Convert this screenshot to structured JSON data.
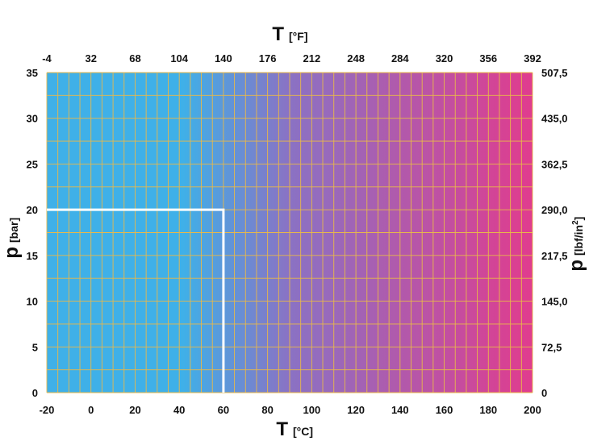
{
  "chart_data": {
    "type": "area",
    "x_bottom": {
      "symbol": "T",
      "unit": "[°C]",
      "range": [
        -20,
        200
      ],
      "ticks": [
        -20,
        0,
        20,
        40,
        60,
        80,
        100,
        120,
        140,
        160,
        180,
        200
      ],
      "tick_labels": [
        "-20",
        "0",
        "20",
        "40",
        "60",
        "80",
        "100",
        "120",
        "140",
        "160",
        "180",
        "200"
      ]
    },
    "x_top": {
      "symbol": "T",
      "unit": "[°F]",
      "range": [
        -4,
        392
      ],
      "tick_labels": [
        "-4",
        "32",
        "68",
        "104",
        "140",
        "176",
        "212",
        "248",
        "284",
        "320",
        "356",
        "392"
      ]
    },
    "y_left": {
      "symbol": "p",
      "unit": "[bar]",
      "range": [
        0,
        35
      ],
      "ticks": [
        0,
        5,
        10,
        15,
        20,
        25,
        30,
        35
      ],
      "tick_labels": [
        "0",
        "5",
        "10",
        "15",
        "20",
        "25",
        "30",
        "35"
      ]
    },
    "y_right": {
      "symbol": "p",
      "unit": "[lbf/in",
      "unit_superscript": "2",
      "unit_close": "]",
      "range": [
        0,
        507.5
      ],
      "tick_labels": [
        "0",
        "72,5",
        "145,0",
        "217,5",
        "290,0",
        "362,5",
        "435,0",
        "507,5"
      ]
    },
    "operating_limit": {
      "x": [
        -20,
        60,
        60
      ],
      "y": [
        20,
        20,
        0
      ]
    },
    "grid": true,
    "colors": {
      "gradient_start": "#3fb0e8",
      "gradient_mid": "#8a72c4",
      "gradient_end": "#e03c8e",
      "grid": "#e8b84a",
      "limit_line": "#ffffff"
    }
  }
}
